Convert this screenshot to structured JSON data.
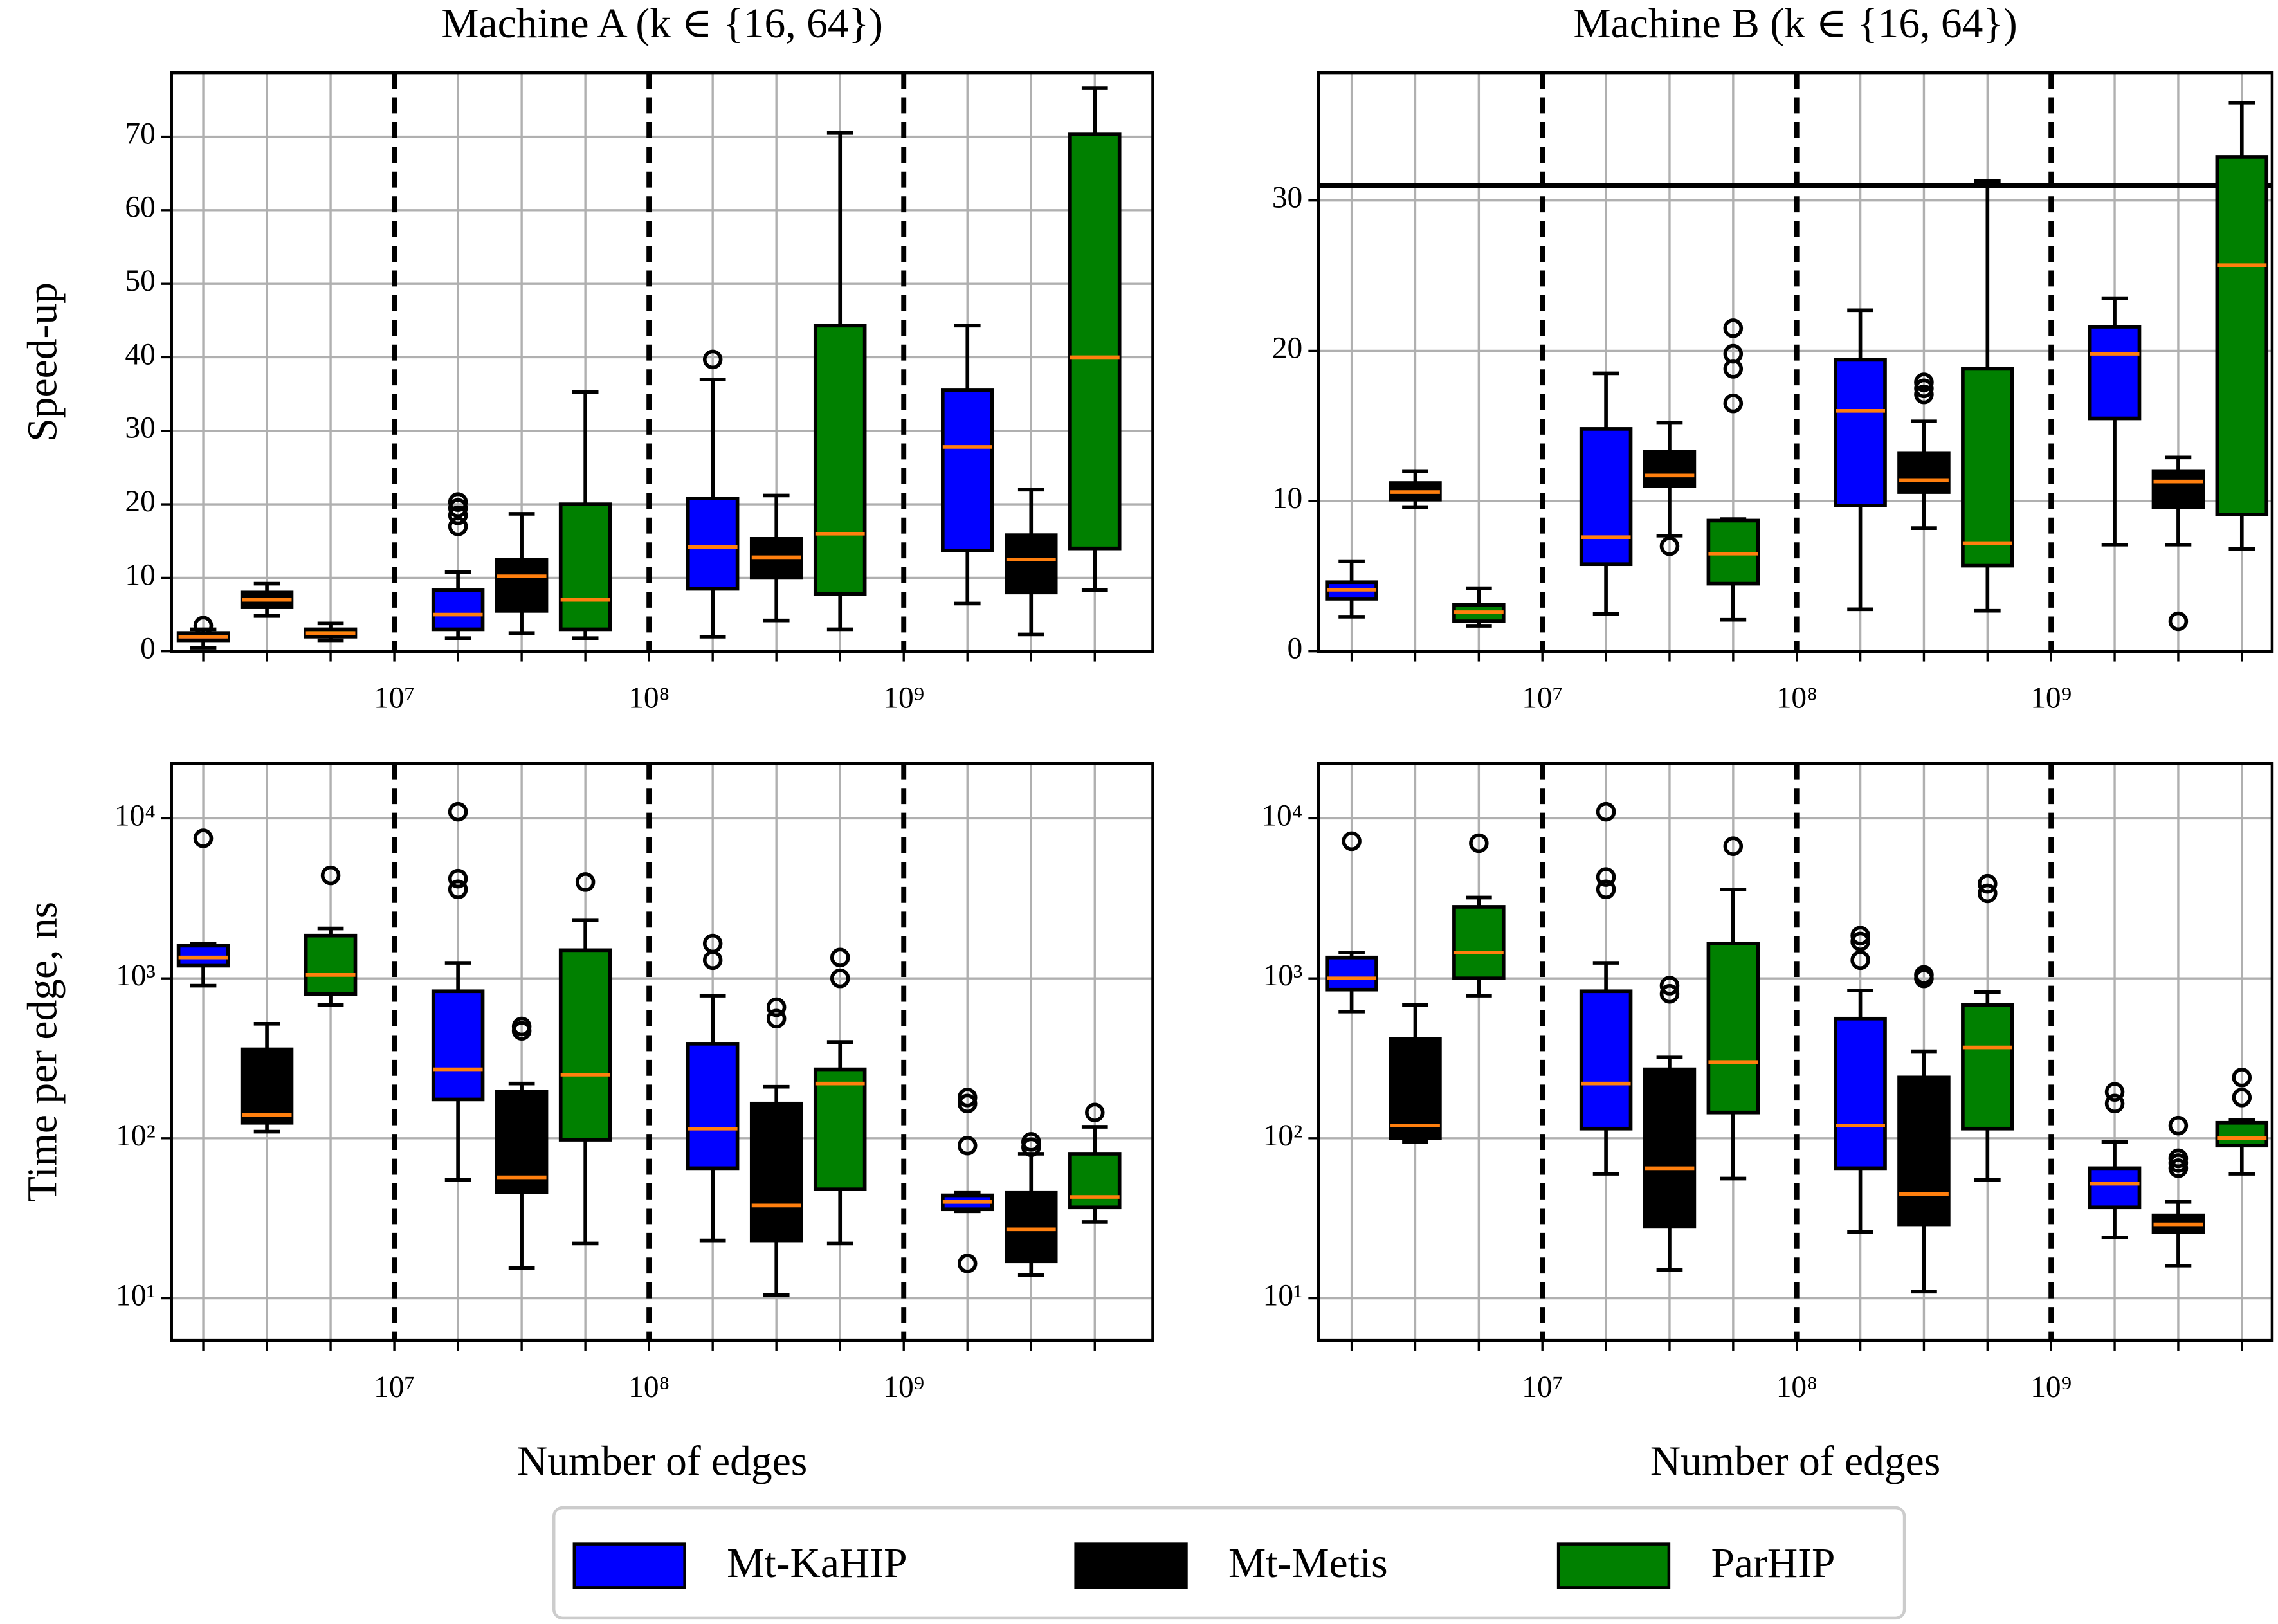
{
  "chart_data": {
    "type": "box",
    "series": [
      {
        "name": "Mt-KaHIP",
        "color": "#0000ff"
      },
      {
        "name": "Mt-Metis",
        "color": "#000000"
      },
      {
        "name": "ParHIP",
        "color": "#008000"
      }
    ],
    "median_color": "#ff7f0e",
    "grid": true,
    "dashed_xticks": true,
    "legend": "bottom",
    "panels": [
      {
        "title": "Machine A (k ∈ {16, 64})",
        "ylabel": "Speed-up",
        "log_x": true,
        "log_y": false,
        "xlim": [
          1335000,
          9500000000
        ],
        "xticks": [
          {
            "value": 10000000,
            "label": "10⁷"
          },
          {
            "value": 100000000,
            "label": "10⁸"
          },
          {
            "value": 1000000000,
            "label": "10⁹"
          }
        ],
        "ylim": [
          0,
          78.7
        ],
        "yticks": [
          0,
          10,
          20,
          30,
          40,
          50,
          60,
          70
        ],
        "series": [
          {
            "boxes": [
              {
                "x": 1778279,
                "whislo": 0.5,
                "q1": 1.5,
                "med": 2,
                "q3": 2.5,
                "whishi": 3,
                "fliers": [
                  3.5
                ]
              },
              {
                "x": 17782794,
                "whislo": 1.8,
                "q1": 3,
                "med": 5,
                "q3": 8.3,
                "whishi": 10.8,
                "fliers": [
                  17,
                  18.5,
                  19.5,
                  20.3
                ]
              },
              {
                "x": 177827941,
                "whislo": 2,
                "q1": 8.5,
                "med": 14.2,
                "q3": 20.8,
                "whishi": 37,
                "fliers": [
                  39.7
                ]
              },
              {
                "x": 1778279410,
                "whislo": 6.5,
                "q1": 13.7,
                "med": 27.8,
                "q3": 35.5,
                "whishi": 44.3,
                "fliers": []
              }
            ]
          },
          {
            "boxes": [
              {
                "x": 3162278,
                "whislo": 4.8,
                "q1": 6,
                "med": 7,
                "q3": 8,
                "whishi": 9.2,
                "fliers": []
              },
              {
                "x": 31622777,
                "whislo": 2.5,
                "q1": 5.5,
                "med": 10.2,
                "q3": 12.5,
                "whishi": 18.7,
                "fliers": []
              },
              {
                "x": 316227766,
                "whislo": 4.2,
                "q1": 10,
                "med": 12.8,
                "q3": 15.3,
                "whishi": 21.2,
                "fliers": []
              },
              {
                "x": 3162277660,
                "whislo": 2.3,
                "q1": 8,
                "med": 12.5,
                "q3": 15.8,
                "whishi": 22,
                "fliers": []
              }
            ]
          },
          {
            "boxes": [
              {
                "x": 5623413,
                "whislo": 1.5,
                "q1": 2,
                "med": 2.5,
                "q3": 3,
                "whishi": 3.8,
                "fliers": []
              },
              {
                "x": 56234133,
                "whislo": 1.8,
                "q1": 3,
                "med": 7,
                "q3": 20,
                "whishi": 35.3,
                "fliers": []
              },
              {
                "x": 562341325,
                "whislo": 3,
                "q1": 7.8,
                "med": 16,
                "q3": 44.3,
                "whishi": 70.5,
                "fliers": []
              },
              {
                "x": 5623413252,
                "whislo": 8.3,
                "q1": 14,
                "med": 40,
                "q3": 70.3,
                "whishi": 76.6,
                "fliers": []
              }
            ]
          }
        ]
      },
      {
        "title": "Machine B (k ∈ {16, 64})",
        "log_x": true,
        "log_y": false,
        "xlim": [
          1318000,
          7400000000
        ],
        "xticks": [
          {
            "value": 10000000,
            "label": "10⁷"
          },
          {
            "value": 100000000,
            "label": "10⁸"
          },
          {
            "value": 1000000000,
            "label": "10⁹"
          }
        ],
        "ylim": [
          0,
          38.5
        ],
        "yticks": [
          0,
          10,
          20,
          30
        ],
        "hlines": [
          31
        ],
        "series": [
          {
            "boxes": [
              {
                "x": 1778279,
                "whislo": 2.3,
                "q1": 3.5,
                "med": 4.1,
                "q3": 4.6,
                "whishi": 6,
                "fliers": []
              },
              {
                "x": 17782794,
                "whislo": 2.5,
                "q1": 5.8,
                "med": 7.6,
                "q3": 14.8,
                "whishi": 18.5,
                "fliers": []
              },
              {
                "x": 177827941,
                "whislo": 2.8,
                "q1": 9.7,
                "med": 16,
                "q3": 19.4,
                "whishi": 22.7,
                "fliers": []
              },
              {
                "x": 1778279410,
                "whislo": 7.1,
                "q1": 15.5,
                "med": 19.8,
                "q3": 21.6,
                "whishi": 23.5,
                "fliers": []
              }
            ]
          },
          {
            "boxes": [
              {
                "x": 3162278,
                "whislo": 9.6,
                "q1": 10.1,
                "med": 10.6,
                "q3": 11.2,
                "whishi": 12,
                "fliers": []
              },
              {
                "x": 31622777,
                "whislo": 7.7,
                "q1": 11,
                "med": 11.7,
                "q3": 13.3,
                "whishi": 15.2,
                "fliers": [
                  7
                ]
              },
              {
                "x": 316227766,
                "whislo": 8.2,
                "q1": 10.6,
                "med": 11.4,
                "q3": 13.2,
                "whishi": 15.3,
                "fliers": [
                  17.1,
                  17.5,
                  17.9
                ]
              },
              {
                "x": 3162277660,
                "whislo": 7.1,
                "q1": 9.6,
                "med": 11.3,
                "q3": 12,
                "whishi": 12.9,
                "fliers": [
                  2
                ]
              }
            ]
          },
          {
            "boxes": [
              {
                "x": 5623413,
                "whislo": 1.7,
                "q1": 2,
                "med": 2.6,
                "q3": 3.1,
                "whishi": 4.2,
                "fliers": []
              },
              {
                "x": 56234133,
                "whislo": 2.1,
                "q1": 4.5,
                "med": 6.5,
                "q3": 8.7,
                "whishi": 8.8,
                "fliers": [
                  16.5,
                  18.8,
                  19.8,
                  21.5
                ]
              },
              {
                "x": 562341325,
                "whislo": 2.7,
                "q1": 5.7,
                "med": 7.2,
                "q3": 18.8,
                "whishi": 31.3,
                "fliers": []
              },
              {
                "x": 5623413252,
                "whislo": 6.8,
                "q1": 9.1,
                "med": 25.7,
                "q3": 32.9,
                "whishi": 36.5,
                "fliers": []
              }
            ]
          }
        ]
      },
      {
        "ylabel": "Time per edge, ns",
        "xlabel": "Number of edges",
        "log_x": true,
        "log_y": true,
        "xlim": [
          1335000,
          9500000000
        ],
        "xticks": [
          {
            "value": 10000000,
            "label": "10⁷"
          },
          {
            "value": 100000000,
            "label": "10⁸"
          },
          {
            "value": 1000000000,
            "label": "10⁹"
          }
        ],
        "ylim": [
          5.45,
          22100
        ],
        "yticks": [
          {
            "value": 10,
            "label": "10¹"
          },
          {
            "value": 100,
            "label": "10²"
          },
          {
            "value": 1000,
            "label": "10³"
          },
          {
            "value": 10000,
            "label": "10⁴"
          }
        ],
        "series": [
          {
            "boxes": [
              {
                "x": 1778279,
                "whislo": 900,
                "q1": 1200,
                "med": 1350,
                "q3": 1600,
                "whishi": 1650,
                "fliers": [
                  7500
                ]
              },
              {
                "x": 17782794,
                "whislo": 55,
                "q1": 175,
                "med": 270,
                "q3": 830,
                "whishi": 1250,
                "fliers": [
                  3600,
                  4200,
                  11000
                ]
              },
              {
                "x": 177827941,
                "whislo": 23,
                "q1": 65,
                "med": 115,
                "q3": 390,
                "whishi": 780,
                "fliers": [
                  1300,
                  1650
                ]
              },
              {
                "x": 1778279410,
                "whislo": 35,
                "q1": 36,
                "med": 40,
                "q3": 44,
                "whishi": 46,
                "fliers": [
                  16.5,
                  90,
                  165,
                  180
                ]
              }
            ]
          },
          {
            "boxes": [
              {
                "x": 3162278,
                "whislo": 110,
                "q1": 125,
                "med": 140,
                "q3": 360,
                "whishi": 520,
                "fliers": []
              },
              {
                "x": 31622777,
                "whislo": 15.5,
                "q1": 46,
                "med": 57,
                "q3": 195,
                "whishi": 220,
                "fliers": [
                  470,
                  500
                ]
              },
              {
                "x": 316227766,
                "whislo": 10.5,
                "q1": 23,
                "med": 38,
                "q3": 165,
                "whishi": 210,
                "fliers": [
                  560,
                  660
                ]
              },
              {
                "x": 3162277660,
                "whislo": 14,
                "q1": 17,
                "med": 27,
                "q3": 46,
                "whishi": 80,
                "fliers": [
                  88,
                  95
                ]
              }
            ]
          },
          {
            "boxes": [
              {
                "x": 5623413,
                "whislo": 680,
                "q1": 800,
                "med": 1050,
                "q3": 1850,
                "whishi": 2050,
                "fliers": [
                  4400
                ]
              },
              {
                "x": 56234133,
                "whislo": 22,
                "q1": 98,
                "med": 250,
                "q3": 1500,
                "whishi": 2300,
                "fliers": [
                  4000
                ]
              },
              {
                "x": 562341325,
                "whislo": 22,
                "q1": 48,
                "med": 220,
                "q3": 270,
                "whishi": 400,
                "fliers": [
                  1000,
                  1350
                ]
              },
              {
                "x": 5623413252,
                "whislo": 30,
                "q1": 37,
                "med": 43,
                "q3": 80,
                "whishi": 118,
                "fliers": [
                  145
                ]
              }
            ]
          }
        ]
      },
      {
        "xlabel": "Number of edges",
        "log_x": true,
        "log_y": true,
        "xlim": [
          1318000,
          7400000000
        ],
        "xticks": [
          {
            "value": 10000000,
            "label": "10⁷"
          },
          {
            "value": 100000000,
            "label": "10⁸"
          },
          {
            "value": 1000000000,
            "label": "10⁹"
          }
        ],
        "ylim": [
          5.45,
          22100
        ],
        "yticks": [
          {
            "value": 10,
            "label": "10¹"
          },
          {
            "value": 100,
            "label": "10²"
          },
          {
            "value": 1000,
            "label": "10³"
          },
          {
            "value": 10000,
            "label": "10⁴"
          }
        ],
        "series": [
          {
            "boxes": [
              {
                "x": 1778279,
                "whislo": 620,
                "q1": 850,
                "med": 1000,
                "q3": 1350,
                "whishi": 1450,
                "fliers": [
                  7200
                ]
              },
              {
                "x": 17782794,
                "whislo": 60,
                "q1": 115,
                "med": 220,
                "q3": 830,
                "whishi": 1250,
                "fliers": [
                  3600,
                  4300,
                  11000
                ]
              },
              {
                "x": 177827941,
                "whislo": 26,
                "q1": 65,
                "med": 120,
                "q3": 560,
                "whishi": 840,
                "fliers": [
                  1300,
                  1700,
                  1850
                ]
              },
              {
                "x": 1778279410,
                "whislo": 24,
                "q1": 37,
                "med": 52,
                "q3": 65,
                "whishi": 95,
                "fliers": [
                  165,
                  195
                ]
              }
            ]
          },
          {
            "boxes": [
              {
                "x": 3162278,
                "whislo": 95,
                "q1": 100,
                "med": 120,
                "q3": 420,
                "whishi": 680,
                "fliers": []
              },
              {
                "x": 31622777,
                "whislo": 15,
                "q1": 28,
                "med": 65,
                "q3": 270,
                "whishi": 320,
                "fliers": [
                  800,
                  900
                ]
              },
              {
                "x": 316227766,
                "whislo": 11,
                "q1": 29,
                "med": 45,
                "q3": 240,
                "whishi": 350,
                "fliers": [
                  1000,
                  1050
                ]
              },
              {
                "x": 3162277660,
                "whislo": 16,
                "q1": 26,
                "med": 29,
                "q3": 33,
                "whishi": 40,
                "fliers": [
                  65,
                  70,
                  75,
                  120
                ]
              }
            ]
          },
          {
            "boxes": [
              {
                "x": 5623413,
                "whislo": 780,
                "q1": 1000,
                "med": 1450,
                "q3": 2800,
                "whishi": 3200,
                "fliers": [
                  7000
                ]
              },
              {
                "x": 56234133,
                "whislo": 56,
                "q1": 145,
                "med": 300,
                "q3": 1650,
                "whishi": 3600,
                "fliers": [
                  6700
                ]
              },
              {
                "x": 562341325,
                "whislo": 55,
                "q1": 115,
                "med": 370,
                "q3": 680,
                "whishi": 820,
                "fliers": [
                  3400,
                  3900
                ]
              },
              {
                "x": 5623413252,
                "whislo": 60,
                "q1": 90,
                "med": 100,
                "q3": 125,
                "whishi": 130,
                "fliers": [
                  180,
                  240
                ]
              }
            ]
          }
        ]
      }
    ]
  }
}
